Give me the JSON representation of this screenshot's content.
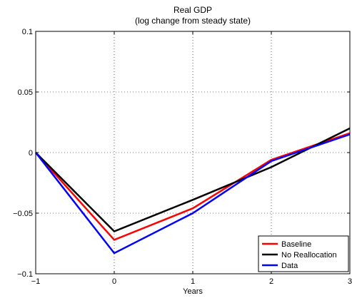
{
  "chart_data": {
    "type": "line",
    "title": "Real GDP",
    "subtitle": "(log change from steady state)",
    "xlabel": "Years",
    "ylabel": "",
    "xlim": [
      -1,
      3
    ],
    "ylim": [
      -0.1,
      0.1
    ],
    "xticks": [
      -1,
      0,
      1,
      2,
      3
    ],
    "xtick_labels": [
      "−1",
      "0",
      "1",
      "2",
      "3"
    ],
    "yticks": [
      -0.1,
      -0.05,
      0,
      0.05,
      0.1
    ],
    "ytick_labels": [
      "−0.1",
      "−0.05",
      "0",
      "0.05",
      "0.1"
    ],
    "grid": true,
    "legend_position": "bottom-right",
    "series": [
      {
        "name": "Baseline",
        "color": "#ff0000",
        "x": [
          -1,
          0,
          1,
          2,
          3
        ],
        "y": [
          0,
          -0.072,
          -0.046,
          -0.006,
          0.016
        ]
      },
      {
        "name": "No Reallocation",
        "color": "#000000",
        "x": [
          -1,
          0,
          1,
          2,
          3
        ],
        "y": [
          0,
          -0.065,
          -0.039,
          -0.012,
          0.02
        ]
      },
      {
        "name": "Data",
        "color": "#0000ff",
        "x": [
          -1,
          0,
          1,
          2,
          3
        ],
        "y": [
          0,
          -0.083,
          -0.05,
          -0.007,
          0.015
        ]
      }
    ]
  }
}
